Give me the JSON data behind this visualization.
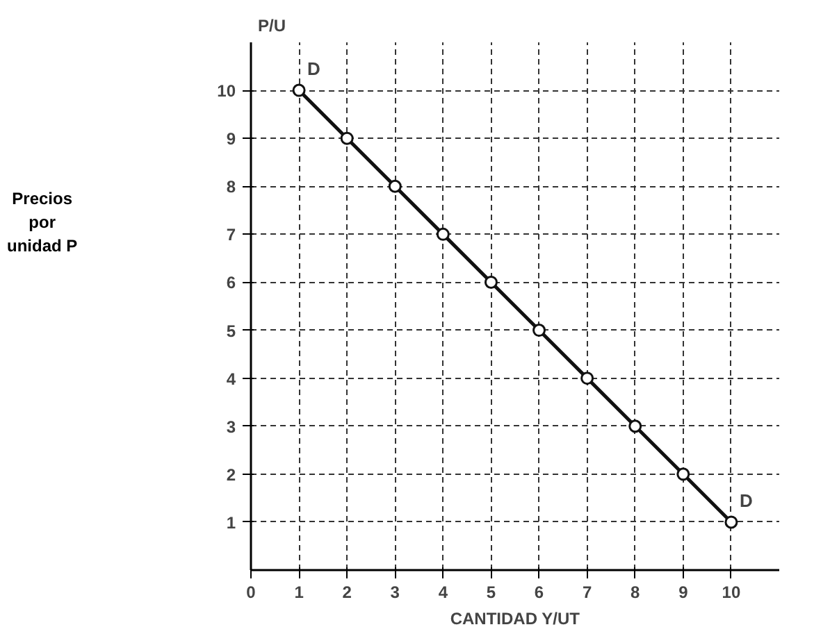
{
  "chart_data": {
    "type": "line",
    "xlabel": "CANTIDAD Y/UT",
    "ylabel": "P/U",
    "x": [
      1,
      2,
      3,
      4,
      5,
      6,
      7,
      8,
      9,
      10
    ],
    "series": [
      {
        "color": "#111111",
        "values": [
          10,
          9,
          8,
          7,
          6,
          5,
          4,
          3,
          2,
          1
        ]
      }
    ],
    "xlim": [
      0,
      11
    ],
    "ylim": [
      0,
      11
    ],
    "xticks": [
      0,
      1,
      2,
      3,
      4,
      5,
      6,
      7,
      8,
      9,
      10
    ],
    "yticks": [
      1,
      2,
      3,
      4,
      5,
      6,
      7,
      8,
      9,
      10
    ],
    "grid": true,
    "marker": "circle",
    "line_style": "solid",
    "annotations": [
      "Precios\npor\nunidad P",
      {
        "text": "D",
        "x": 1,
        "y": 10
      },
      {
        "text": "D",
        "x": 10,
        "y": 1
      }
    ]
  }
}
